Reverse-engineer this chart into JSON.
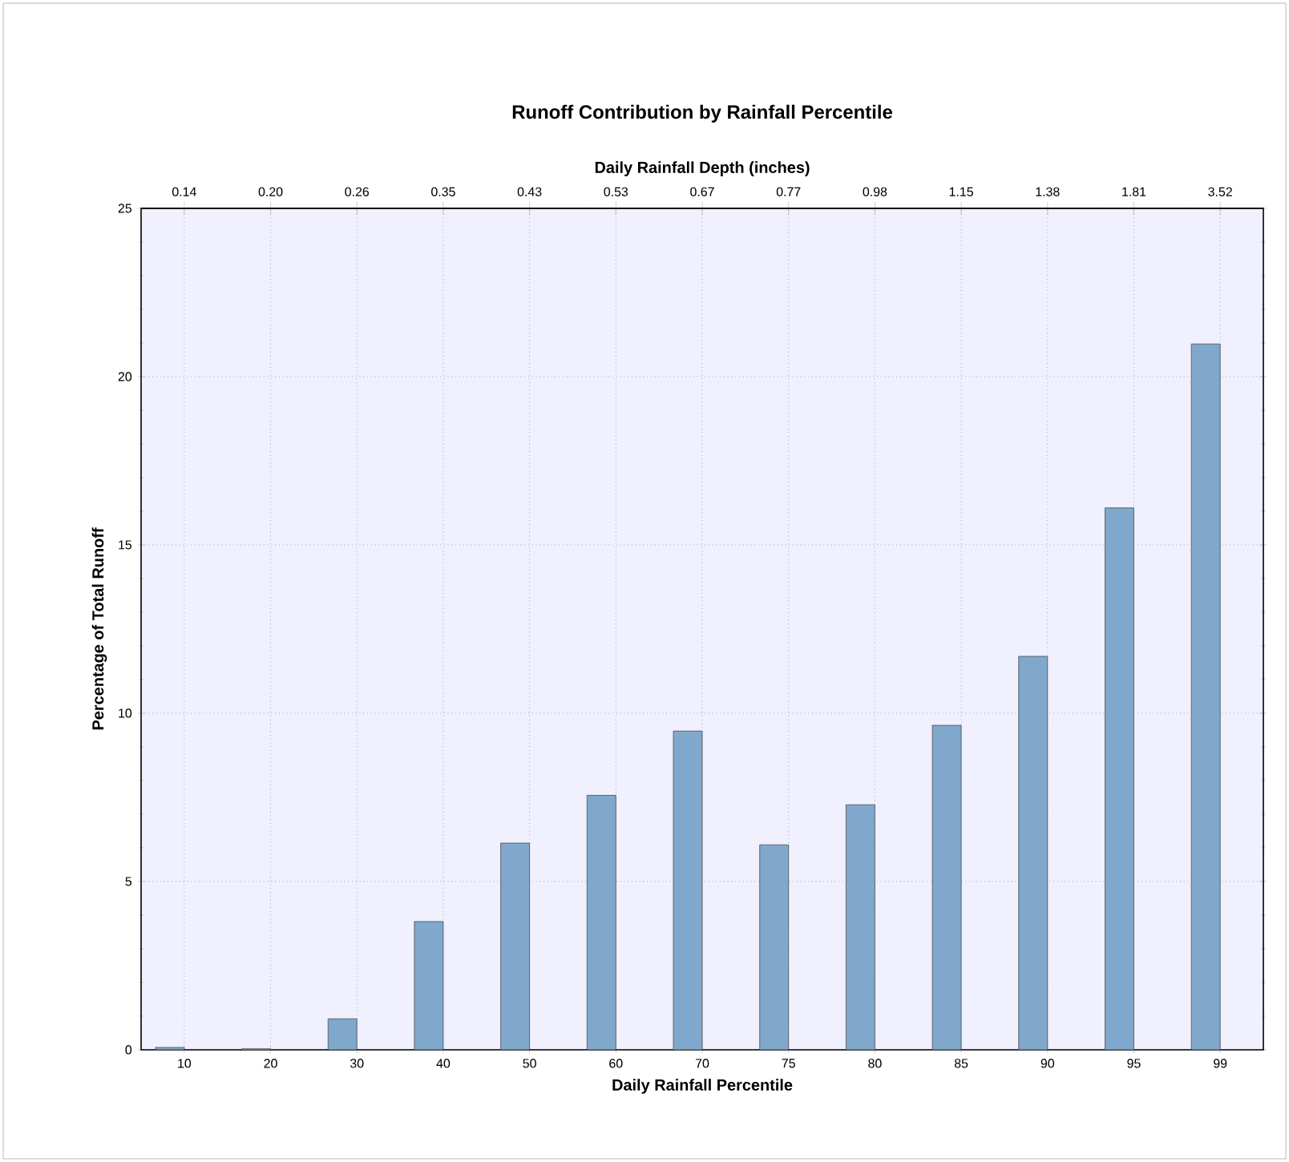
{
  "chart_data": {
    "type": "bar",
    "title": "Runoff Contribution by Rainfall Percentile",
    "xlabel": "Daily Rainfall Percentile",
    "ylabel": "Percentage of Total Runoff",
    "x2label": "Daily Rainfall Depth (inches)",
    "categories": [
      "10",
      "20",
      "30",
      "40",
      "50",
      "60",
      "70",
      "75",
      "80",
      "85",
      "90",
      "95",
      "99"
    ],
    "annotations": [
      "0.14",
      "0.20",
      "0.26",
      "0.35",
      "0.43",
      "0.53",
      "0.67",
      "0.77",
      "0.98",
      "1.15",
      "1.38",
      "1.81",
      "3.52"
    ],
    "values": [
      0.07,
      0.03,
      0.92,
      3.81,
      6.14,
      7.56,
      9.47,
      6.09,
      7.28,
      9.64,
      11.69,
      16.1,
      20.97
    ],
    "color": "#7fa8cc",
    "ylim": [
      0,
      25
    ],
    "yticks": [
      0,
      5,
      10,
      15,
      20,
      25
    ],
    "grid": true
  }
}
